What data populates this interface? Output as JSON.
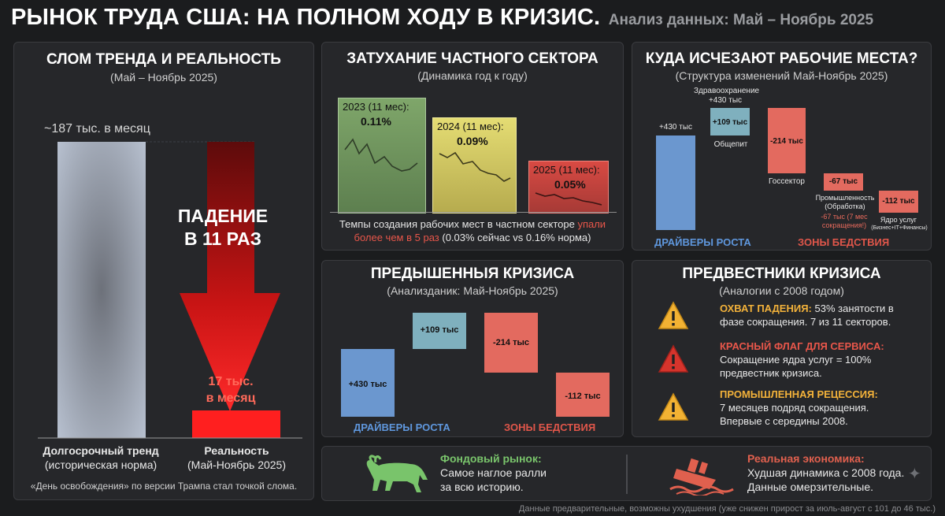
{
  "header": {
    "title": "РЫНОК ТРУДА США: НА ПОЛНОМ ХОДУ В КРИЗИС.",
    "subtitle": "Анализ данных: Май – Ноябрь 2025"
  },
  "panel_trend": {
    "title": "СЛОМ ТРЕНДА И РЕАЛЬНОСТЬ",
    "subtitle": "(Май – Ноябрь 2025)",
    "trend_value_label": "~187 тыс. в месяц",
    "arrow_text_1": "ПАДЕНИЕ",
    "arrow_text_2": "В 11 РАЗ",
    "reality_value_1": "17 тыс.",
    "reality_value_2": "в месяц",
    "label_trend_1": "Долгосрочный тренд",
    "label_trend_2": "(историческая норма)",
    "label_real_1": "Реальность",
    "label_real_2": "(Май-Ноябрь 2025)",
    "note": "«День освобождения» по версии Трампа стал точкой слома."
  },
  "panel_private": {
    "title": "ЗАТУХАНИЕ ЧАСТНОГО СЕКТОРА",
    "subtitle": "(Динамика год к году)",
    "cards": [
      {
        "label": "2023 (11 мес):",
        "value": "0.11%"
      },
      {
        "label": "2024 (11 мес):",
        "value": "0.09%"
      },
      {
        "label": "2025 (11 мес):",
        "value": "0.05%"
      }
    ],
    "caption_1": "Темпы создания рабочих мест в частном секторе",
    "caption_red": "упали более чем в 5 раз",
    "caption_2": "(0.03% сейчас vs 0.16% норма)"
  },
  "panel_where": {
    "title": "КУДА ИСЧЕЗАЮТ РАБОЧИЕ МЕСТА?",
    "subtitle": "(Структура изменений Май-Ноябрь 2025)",
    "bars": [
      {
        "value": "+430 тыс",
        "label": ""
      },
      {
        "value": "+109 тыс",
        "label": "Общепит"
      },
      {
        "value": "-214 тыс",
        "label": "Госсектор"
      },
      {
        "value": "-67 тыс",
        "label": "Промышленность (Обработка)"
      },
      {
        "value": "-112 тыс",
        "label": "Ядро услуг"
      }
    ],
    "health_label_1": "Здравоохранение",
    "health_label_2": "+430 тыс",
    "manuf_note": "-67 тыс (7 мес сокращения!)",
    "core_note": "(Бизнес+IT+Финансы)",
    "growth_label": "ДРАЙВЕРЫ РОСТА",
    "disaster_label": "ЗОНЫ БЕДСТВИЯ"
  },
  "panel_exceeded": {
    "title": "ПРЕДЫШЕННЫЯ КРИЗИСА",
    "subtitle": "(Анализданик: Май-Ноябрь 2025)",
    "bars": [
      {
        "value": "+430 тыс"
      },
      {
        "value": "+109 тыс"
      },
      {
        "value": "-214 тыс"
      },
      {
        "value": "-112 тыс"
      }
    ],
    "growth_label": "ДРАЙВЕРЫ РОСТА",
    "disaster_label": "ЗОНЫ БЕДСТВИЯ"
  },
  "panel_precursors": {
    "title": "ПРЕДВЕСТНИКИ КРИЗИСА",
    "subtitle": "(Аналогии с 2008 годом)",
    "items": [
      {
        "head": "ОХВАТ ПАДЕНИЯ:",
        "text_1": "53% занятости в",
        "text_2": "фазе сокращения. 7 из 11 секторов."
      },
      {
        "head": "КРАСНЫЙ ФЛАГ ДЛЯ СЕРВИСА:",
        "text_1": "Сокращение ядра услуг = 100%",
        "text_2": "предвестник кризиса."
      },
      {
        "head": "ПРОМЫШЛЕННАЯ РЕЦЕССИЯ:",
        "text_1": "7 месяцев подряд сокращения.",
        "text_2": "Впервые с середины 2008."
      }
    ]
  },
  "bottom": {
    "stock_head": "Фондовый рынок:",
    "stock_1": "Самое наглое ралли",
    "stock_2": "за всю историю.",
    "real_head": "Реальная экономика:",
    "real_1": "Худшая динамика с 2008 года.",
    "real_2": "Данные омерзительные."
  },
  "footnote": "Данные предварительные, возможны ухудшения (уже снижен прирост за июль-август с 101 до 46 тыс.)",
  "chart_data": [
    {
      "type": "bar",
      "categories": [
        "Долгосрочный тренд",
        "Реальность"
      ],
      "values": [
        187,
        17
      ],
      "unit": "тыс. в месяц"
    },
    {
      "type": "bar",
      "categories": [
        "2023 (11 мес)",
        "2024 (11 мес)",
        "2025 (11 мес)"
      ],
      "values": [
        0.11,
        0.09,
        0.05
      ],
      "unit": "%"
    },
    {
      "type": "bar",
      "categories": [
        "Здравоохранение",
        "Общепит",
        "Госсектор",
        "Промышленность (Обработка)",
        "Ядро услуг"
      ],
      "values": [
        430,
        109,
        -214,
        -67,
        -112
      ],
      "unit": "тыс"
    },
    {
      "type": "bar",
      "categories": [
        "",
        "",
        "",
        ""
      ],
      "values": [
        430,
        109,
        -214,
        -112
      ],
      "unit": "тыс"
    }
  ],
  "colors": {
    "blue": "#7fa6d6",
    "teal": "#7fb0be",
    "red": "#e36a5f",
    "deep_red": "#d41717",
    "green_card": "#7fa66a",
    "yellow_card": "#e4dc73",
    "orange": "#f3b23a",
    "bull_green": "#79c46b",
    "ship_red": "#e0604e"
  }
}
